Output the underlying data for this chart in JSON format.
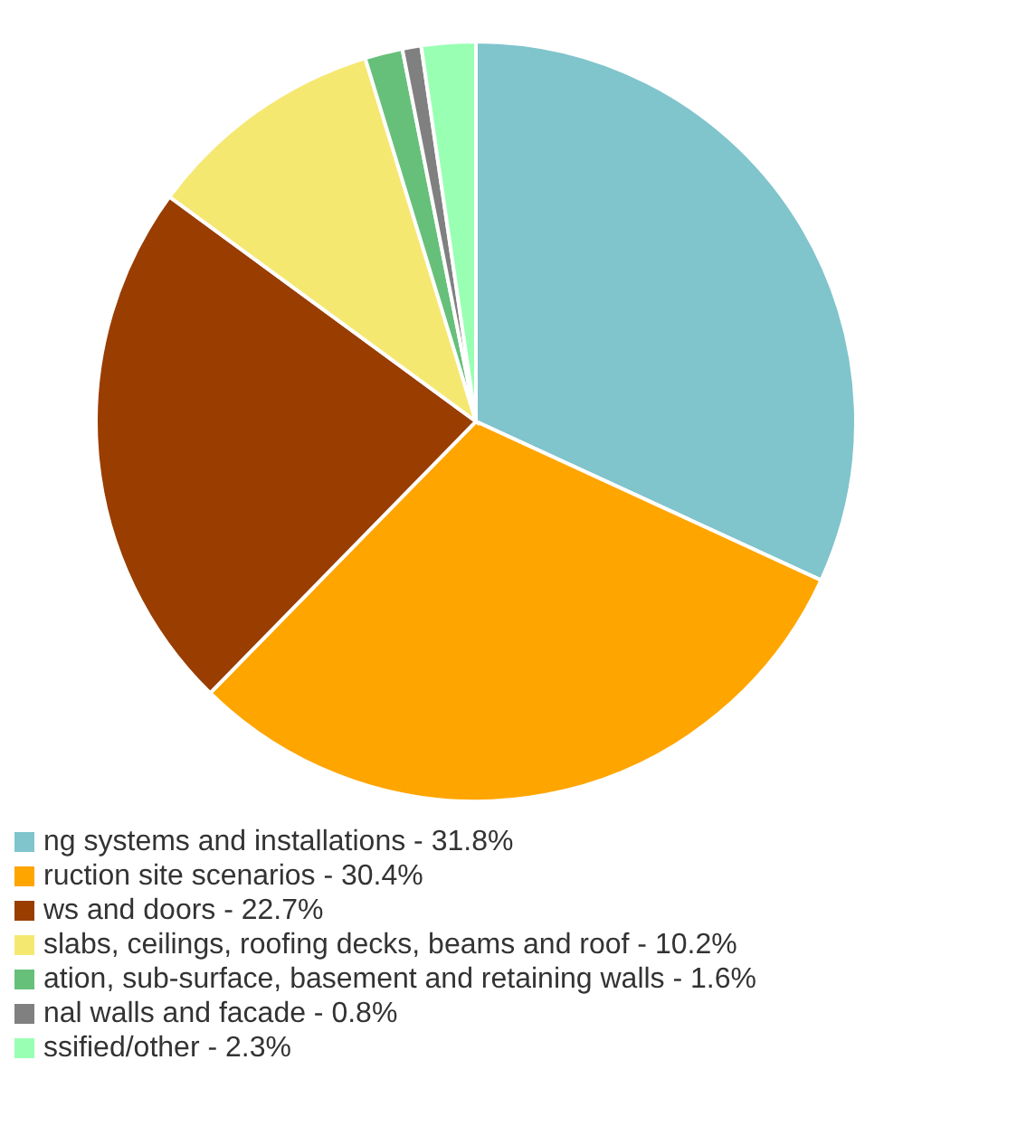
{
  "chart_data": {
    "type": "pie",
    "categories": [
      "ng systems and installations - 31.8%",
      "ruction site scenarios - 30.4%",
      "ws and doors - 22.7%",
      "slabs, ceilings, roofing decks, beams and roof - 10.2%",
      "ation, sub-surface, basement and retaining walls - 1.6%",
      "nal walls and facade - 0.8%",
      "ssified/other - 2.3%"
    ],
    "values": [
      31.8,
      30.4,
      22.7,
      10.2,
      1.6,
      0.8,
      2.3
    ],
    "colors": [
      "#80c4cc",
      "#ffa500",
      "#993d00",
      "#f5e871",
      "#66c07a",
      "#808080",
      "#99ffb3"
    ],
    "legend": "bottom"
  }
}
